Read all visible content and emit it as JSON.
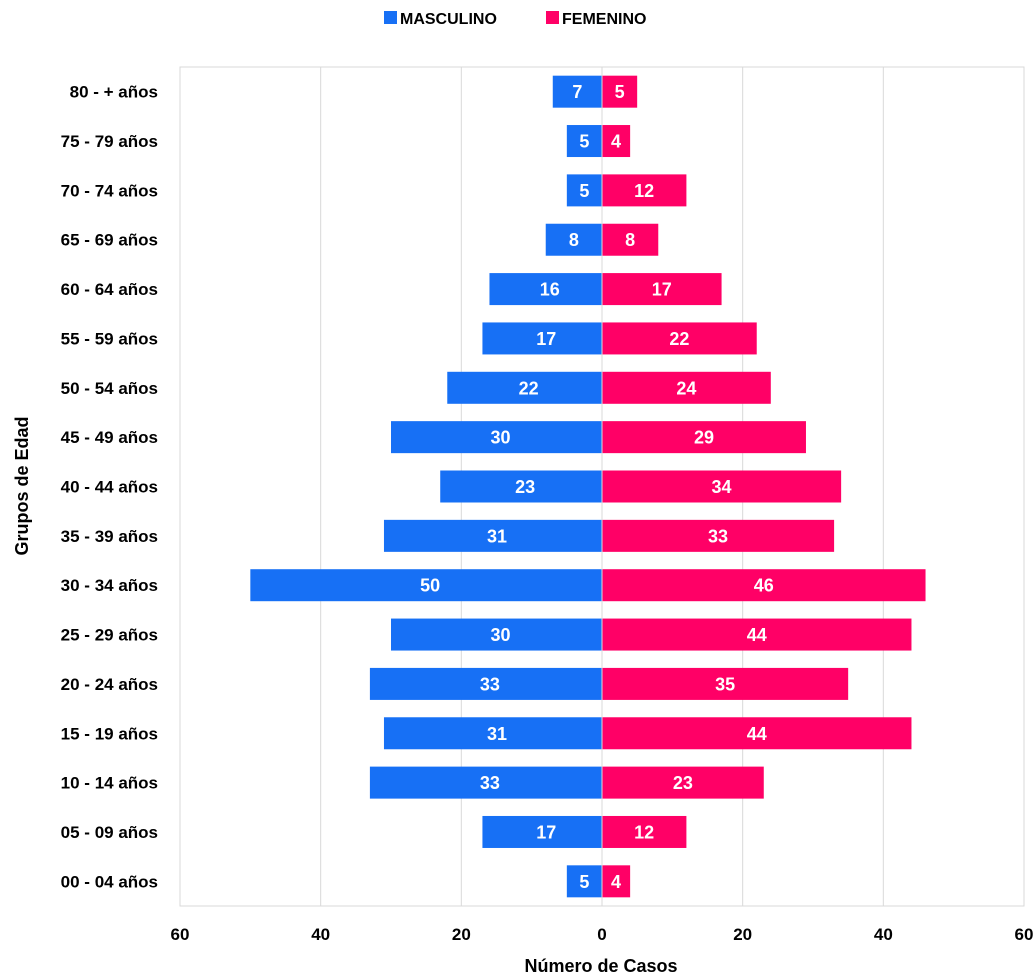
{
  "chart_data": {
    "type": "bar",
    "orientation": "horizontal-population-pyramid",
    "categories": [
      "80 - +  años",
      "75 - 79 años",
      "70 - 74 años",
      "65 - 69 años",
      "60 - 64 años",
      "55 - 59 años",
      "50 - 54 años",
      "45 - 49 años",
      "40 - 44 años",
      "35 - 39 años",
      "30 - 34 años",
      "25 - 29 años",
      "20 - 24 años",
      "15 - 19 años",
      "10 - 14 años",
      "05 - 09 años",
      "00 - 04 años"
    ],
    "series": [
      {
        "name": "MASCULINO",
        "color": "#1770F5",
        "values": [
          7,
          5,
          5,
          8,
          16,
          17,
          22,
          30,
          23,
          31,
          50,
          30,
          33,
          31,
          33,
          17,
          5
        ]
      },
      {
        "name": "FEMENINO",
        "color": "#FF0066",
        "values": [
          5,
          4,
          12,
          8,
          17,
          22,
          24,
          29,
          34,
          33,
          46,
          44,
          35,
          44,
          23,
          12,
          4
        ]
      }
    ],
    "xlabel": "Número de Casos",
    "ylabel": "Grupos de Edad",
    "xlim": [
      -60,
      60
    ],
    "x_ticks": [
      -60,
      -40,
      -20,
      0,
      20,
      40,
      60
    ],
    "x_tick_labels": [
      "60",
      "40",
      "20",
      "0",
      "20",
      "40",
      "60"
    ],
    "grid": true,
    "legend_position": "top-center"
  }
}
